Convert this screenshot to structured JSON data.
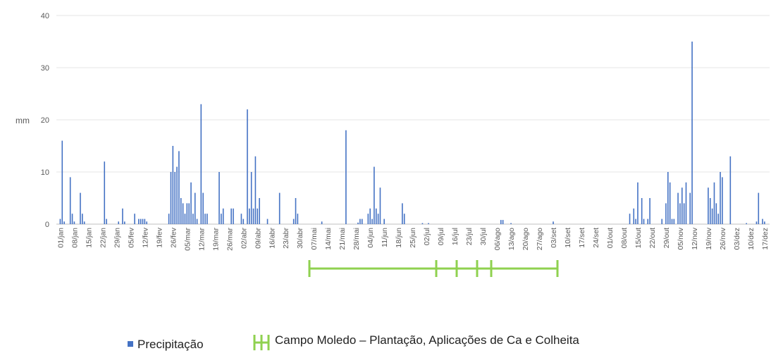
{
  "chart_data": {
    "type": "bar",
    "ylabel": "mm",
    "ylim": [
      0,
      40
    ],
    "yticks": [
      0,
      10,
      20,
      30,
      40
    ],
    "grid": true,
    "legend": "bottom",
    "annotation": "Campo Moledo – Plantação, Aplicações de Ca e Colheita",
    "categories": [
      "01/jan",
      null,
      null,
      null,
      null,
      null,
      null,
      "08/jan",
      null,
      null,
      null,
      null,
      null,
      null,
      "15/jan",
      null,
      null,
      null,
      null,
      null,
      null,
      "22/jan",
      null,
      null,
      null,
      null,
      null,
      null,
      "29/jan",
      null,
      null,
      null,
      null,
      null,
      null,
      "05/fev",
      null,
      null,
      null,
      null,
      null,
      null,
      "12/fev",
      null,
      null,
      null,
      null,
      null,
      null,
      "19/fev",
      null,
      null,
      null,
      null,
      null,
      null,
      "26/fev",
      null,
      null,
      null,
      null,
      null,
      null,
      "05/mar",
      null,
      null,
      null,
      null,
      null,
      null,
      "12/mar",
      null,
      null,
      null,
      null,
      null,
      null,
      "19/mar",
      null,
      null,
      null,
      null,
      null,
      null,
      "26/mar",
      null,
      null,
      null,
      null,
      null,
      null,
      "02/abr",
      null,
      null,
      null,
      null,
      null,
      null,
      "09/abr",
      null,
      null,
      null,
      null,
      null,
      null,
      "16/abr",
      null,
      null,
      null,
      null,
      null,
      null,
      "23/abr",
      null,
      null,
      null,
      null,
      null,
      null,
      "30/abr",
      null,
      null,
      null,
      null,
      null,
      null,
      "07/mai",
      null,
      null,
      null,
      null,
      null,
      null,
      "14/mai",
      null,
      null,
      null,
      null,
      null,
      null,
      "21/mai",
      null,
      null,
      null,
      null,
      null,
      null,
      "28/mai",
      null,
      null,
      null,
      null,
      null,
      null,
      "04/jun",
      null,
      null,
      null,
      null,
      null,
      null,
      "11/jun",
      null,
      null,
      null,
      null,
      null,
      null,
      "18/jun",
      null,
      null,
      null,
      null,
      null,
      null,
      "25/jun",
      null,
      null,
      null,
      null,
      null,
      null,
      "02/jul",
      null,
      null,
      null,
      null,
      null,
      null,
      "09/jul",
      null,
      null,
      null,
      null,
      null,
      null,
      "16/jul",
      null,
      null,
      null,
      null,
      null,
      null,
      "23/jul",
      null,
      null,
      null,
      null,
      null,
      null,
      "30/jul",
      null,
      null,
      null,
      null,
      null,
      null,
      "06/ago",
      null,
      null,
      null,
      null,
      null,
      null,
      "13/ago",
      null,
      null,
      null,
      null,
      null,
      null,
      "20/ago",
      null,
      null,
      null,
      null,
      null,
      null,
      "27/ago",
      null,
      null,
      null,
      null,
      null,
      null,
      "03/set",
      null,
      null,
      null,
      null,
      null,
      null,
      "10/set",
      null,
      null,
      null,
      null,
      null,
      null,
      "17/set",
      null,
      null,
      null,
      null,
      null,
      null,
      "24/set",
      null,
      null,
      null,
      null,
      null,
      null,
      "01/out",
      null,
      null,
      null,
      null,
      null,
      null,
      "08/out",
      null,
      null,
      null,
      null,
      null,
      null,
      "15/out",
      null,
      null,
      null,
      null,
      null,
      null,
      "22/out",
      null,
      null,
      null,
      null,
      null,
      null,
      "29/out",
      null,
      null,
      null,
      null,
      null,
      null,
      "05/nov",
      null,
      null,
      null,
      null,
      null,
      null,
      "12/nov",
      null,
      null,
      null,
      null,
      null,
      null,
      "19/nov",
      null,
      null,
      null,
      null,
      null,
      null,
      "26/nov",
      null,
      null,
      null,
      null,
      null,
      null,
      "03/dez",
      null,
      null,
      null,
      null,
      null,
      null,
      "10/dez",
      null,
      null,
      null,
      null,
      null,
      null,
      "17/dez",
      null,
      null
    ],
    "series": [
      {
        "name": "Precipitação",
        "color": "#4472c4",
        "values": [
          1,
          16,
          0.5,
          0,
          0,
          9,
          2,
          0.5,
          0,
          0,
          6,
          2,
          0.5,
          0,
          0,
          0,
          0,
          0,
          0,
          0,
          0,
          0,
          12,
          1,
          0,
          0,
          0,
          0,
          0,
          0.5,
          0,
          3,
          0.5,
          0,
          0,
          0,
          0,
          2,
          0,
          1,
          1,
          1,
          1,
          0.5,
          0,
          0,
          0,
          0,
          0,
          0,
          0,
          0,
          0,
          0,
          2,
          10,
          15,
          10,
          11,
          14,
          5,
          4,
          2,
          4,
          4,
          8,
          2,
          6,
          1,
          0,
          23,
          6,
          2,
          2,
          0,
          0,
          0,
          0,
          0,
          10,
          2,
          3,
          0,
          0,
          0,
          3,
          3,
          0,
          0,
          0,
          2,
          1,
          0,
          22,
          3,
          10,
          3,
          13,
          3,
          5,
          0,
          0,
          0,
          1,
          0,
          0,
          0,
          0,
          0,
          6,
          0,
          0,
          0,
          0,
          0,
          0,
          1,
          5,
          2,
          0,
          0,
          0,
          0,
          0,
          0,
          0,
          0,
          0,
          0,
          0,
          0.5,
          0,
          0,
          0,
          0,
          0,
          0,
          0,
          0,
          0,
          0,
          0,
          18,
          0,
          0,
          0,
          0,
          0,
          0.3,
          1,
          1,
          0,
          0,
          2,
          3,
          1,
          11,
          3,
          2,
          7,
          0,
          1,
          0,
          0,
          0,
          0,
          0,
          0,
          0,
          0,
          4,
          2,
          0,
          0,
          0,
          0,
          0,
          0,
          0,
          0,
          0.2,
          0,
          0,
          0.2,
          0,
          0,
          0,
          0,
          0,
          0,
          0,
          0,
          0,
          0,
          0,
          0,
          0,
          0,
          0,
          0,
          0,
          0,
          0,
          0,
          0,
          0,
          0,
          0,
          0,
          0,
          0,
          0,
          0,
          0,
          0,
          0,
          0,
          0,
          0,
          0.8,
          0.8,
          0,
          0,
          0,
          0.2,
          0,
          0,
          0,
          0,
          0,
          0,
          0,
          0,
          0,
          0,
          0,
          0,
          0,
          0,
          0,
          0,
          0,
          0,
          0,
          0,
          0.5,
          0,
          0,
          0,
          0,
          0,
          0,
          0,
          0,
          0,
          0,
          0,
          0,
          0,
          0,
          0,
          0,
          0,
          0,
          0,
          0,
          0,
          0,
          0,
          0,
          0,
          0,
          0,
          0,
          0,
          0,
          0,
          0,
          0,
          0,
          0,
          0,
          0,
          2,
          0,
          3,
          1,
          8,
          0,
          5,
          1,
          0,
          1,
          5,
          0,
          0,
          0,
          0,
          0,
          1,
          0,
          4,
          10,
          8,
          1,
          1,
          0,
          6,
          4,
          7,
          4,
          8,
          0,
          6,
          35,
          0,
          0,
          0,
          0,
          0,
          0,
          0,
          7,
          5,
          3,
          8,
          4,
          2,
          10,
          9,
          0,
          0,
          0,
          13,
          0,
          0,
          0,
          0,
          0,
          0,
          0,
          0.2,
          0,
          0,
          0,
          0,
          0.5,
          6,
          0,
          1,
          0.5,
          0,
          0
        ]
      }
    ]
  }
}
